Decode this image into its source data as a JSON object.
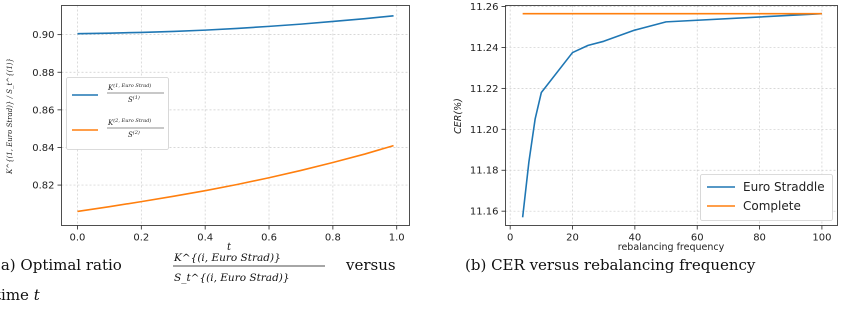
{
  "chart_data": [
    {
      "type": "line",
      "xlabel": "t",
      "ylabel": "K^{(1, Euro Strad)} / S_t^{(1)}",
      "xlim": [
        -0.05,
        1.04
      ],
      "ylim": [
        0.7985,
        0.9155
      ],
      "xticks": [
        "0.0",
        "0.2",
        "0.4",
        "0.6",
        "0.8",
        "1.0"
      ],
      "yticks": [
        "0.82",
        "0.84",
        "0.86",
        "0.88",
        "0.90"
      ],
      "grid": true,
      "legend_position": "center-left",
      "series": [
        {
          "legend_sup": "(1, Euro Strad)",
          "legend_den_sup": "(1)",
          "x": [
            0,
            0.1,
            0.2,
            0.3,
            0.4,
            0.5,
            0.6,
            0.7,
            0.8,
            0.9,
            0.99
          ],
          "values": [
            0.9005,
            0.9008,
            0.9012,
            0.9017,
            0.9024,
            0.9033,
            0.9044,
            0.9056,
            0.907,
            0.9085,
            0.91
          ]
        },
        {
          "legend_sup": "(2, Euro Strad)",
          "legend_den_sup": "(2)",
          "x": [
            0,
            0.1,
            0.2,
            0.3,
            0.4,
            0.5,
            0.6,
            0.7,
            0.8,
            0.9,
            0.99
          ],
          "values": [
            0.806,
            0.8085,
            0.8112,
            0.814,
            0.817,
            0.8203,
            0.8239,
            0.8278,
            0.832,
            0.8365,
            0.841
          ]
        }
      ],
      "caption": {
        "label": "(a)  Optimal ratio",
        "frac_num": "K^{(i, Euro Strad)}",
        "frac_den": "S_t^{(i, Euro Strad)}",
        "tail": "versus",
        "line2_prefix": "time",
        "line2_var": "t"
      }
    },
    {
      "type": "line",
      "xlabel": "rebalancing frequency",
      "ylabel": "CER(%)",
      "xlim": [
        -1.5,
        105
      ],
      "ylim": [
        11.153,
        11.2605
      ],
      "xticks": [
        "0",
        "20",
        "40",
        "60",
        "80",
        "100"
      ],
      "yticks": [
        "11.16",
        "11.18",
        "11.20",
        "11.22",
        "11.24",
        "11.26"
      ],
      "grid": true,
      "legend_position": "lower-right",
      "series": [
        {
          "name": "Euro Straddle",
          "x": [
            4,
            6,
            8,
            10,
            20,
            25,
            30,
            40,
            50,
            100
          ],
          "values": [
            11.157,
            11.184,
            11.205,
            11.218,
            11.2375,
            11.241,
            11.243,
            11.2485,
            11.2525,
            11.2565
          ]
        },
        {
          "name": "Complete",
          "x": [
            4,
            100
          ],
          "values": [
            11.2565,
            11.2565
          ]
        }
      ],
      "caption": "(b) CER versus rebalancing frequency"
    }
  ],
  "colors": {
    "series1": "#1f77b4",
    "series2": "#ff7f0e",
    "grid": "#cccccc"
  }
}
